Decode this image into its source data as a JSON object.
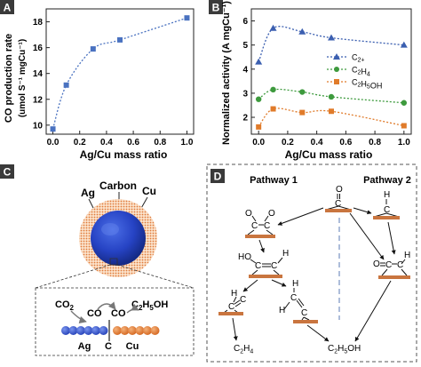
{
  "panel_labels": {
    "a": "A",
    "b": "B",
    "c": "C",
    "d": "D"
  },
  "chart_data": [
    {
      "type": "line",
      "panel": "A",
      "ylabel_line1": "CO production rate",
      "ylabel_line2": "(umol S⁻¹ mgCu⁻¹)",
      "xlabel": "Ag/Cu mass ratio",
      "x": [
        0.0,
        0.1,
        0.3,
        0.5,
        1.0
      ],
      "y": [
        9.7,
        13.1,
        15.9,
        16.6,
        18.3
      ],
      "xlim": [
        -0.05,
        1.05
      ],
      "ylim": [
        9.3,
        19.0
      ],
      "xticks": [
        "0.0",
        "0.2",
        "0.4",
        "0.6",
        "0.8",
        "1.0"
      ],
      "yticks": [
        "10",
        "12",
        "14",
        "16",
        "18"
      ],
      "color": "#4a72c0"
    },
    {
      "type": "line",
      "panel": "B",
      "ylabel": "Normalized activity (A mgCu⁻¹)",
      "xlabel": "Ag/Cu mass ratio",
      "xlim": [
        -0.05,
        1.05
      ],
      "ylim": [
        1.3,
        6.5
      ],
      "xticks": [
        "0.0",
        "0.2",
        "0.4",
        "0.6",
        "0.8",
        "1.0"
      ],
      "yticks": [
        "2",
        "3",
        "4",
        "5",
        "6"
      ],
      "legend": "center-right",
      "series": [
        {
          "name": "C2+",
          "color": "#3b5fb0",
          "marker": "triangle",
          "x": [
            0.0,
            0.1,
            0.3,
            0.5,
            1.0
          ],
          "y": [
            4.3,
            5.7,
            5.55,
            5.3,
            5.0
          ]
        },
        {
          "name": "C2H4",
          "color": "#3d9a3d",
          "marker": "circle",
          "x": [
            0.0,
            0.1,
            0.3,
            0.5,
            1.0
          ],
          "y": [
            2.75,
            3.15,
            3.05,
            2.85,
            2.6
          ]
        },
        {
          "name": "C2H5OH",
          "color": "#e07b2a",
          "marker": "square",
          "x": [
            0.0,
            0.1,
            0.3,
            0.5,
            1.0
          ],
          "y": [
            1.6,
            2.35,
            2.2,
            2.25,
            1.65
          ]
        }
      ]
    }
  ],
  "schematic_c": {
    "label_ag": "Ag",
    "label_carbon": "Carbon",
    "label_cu": "Cu",
    "inset_co2": "CO2",
    "inset_co": "CO",
    "inset_co_2": "CO",
    "inset_product": "C2H5OH",
    "inset_ag": "Ag",
    "inset_c": "C",
    "inset_cu": "Cu"
  },
  "pathways_d": {
    "pathway1": "Pathway 1",
    "pathway2": "Pathway 2",
    "product_ethylene": "C2H4",
    "product_ethanol": "C2H5OH"
  }
}
